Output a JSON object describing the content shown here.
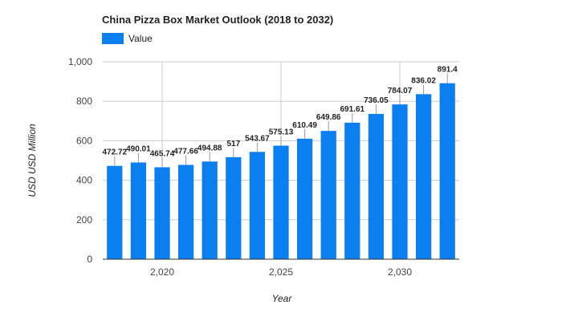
{
  "chart_data": {
    "type": "bar",
    "title": "China Pizza Box Market Outlook (2018 to 2032)",
    "legend": [
      "Value"
    ],
    "legend_position": "top-left",
    "series": [
      {
        "name": "Value",
        "color": "#0b7ff0",
        "x": [
          2018,
          2019,
          2020,
          2021,
          2022,
          2023,
          2024,
          2025,
          2026,
          2027,
          2028,
          2029,
          2030,
          2031,
          2032
        ],
        "values": [
          472.72,
          490.01,
          465.74,
          477.66,
          494.88,
          517,
          543.67,
          575.13,
          610.49,
          649.86,
          691.61,
          736.05,
          784.07,
          836.02,
          891.4
        ],
        "labels": [
          "472.72",
          "490.01",
          "465.74",
          "477.66",
          "494.88",
          "517",
          "543.67",
          "575.13",
          "610.49",
          "649.86",
          "691.61",
          "736.05",
          "784.07",
          "836.02",
          "891.4"
        ]
      }
    ],
    "xlabel": "Year",
    "ylabel": "USD USD Million",
    "xlim": [
      2017.5,
      2032.5
    ],
    "ylim": [
      0,
      1000
    ],
    "x_ticks": [
      2020,
      2025,
      2030
    ],
    "x_tick_labels": [
      "2,020",
      "2,025",
      "2,030"
    ],
    "y_ticks": [
      0,
      200,
      400,
      600,
      800,
      1000
    ],
    "y_tick_labels": [
      "0",
      "200",
      "400",
      "600",
      "800",
      "1,000"
    ],
    "grid": true
  }
}
